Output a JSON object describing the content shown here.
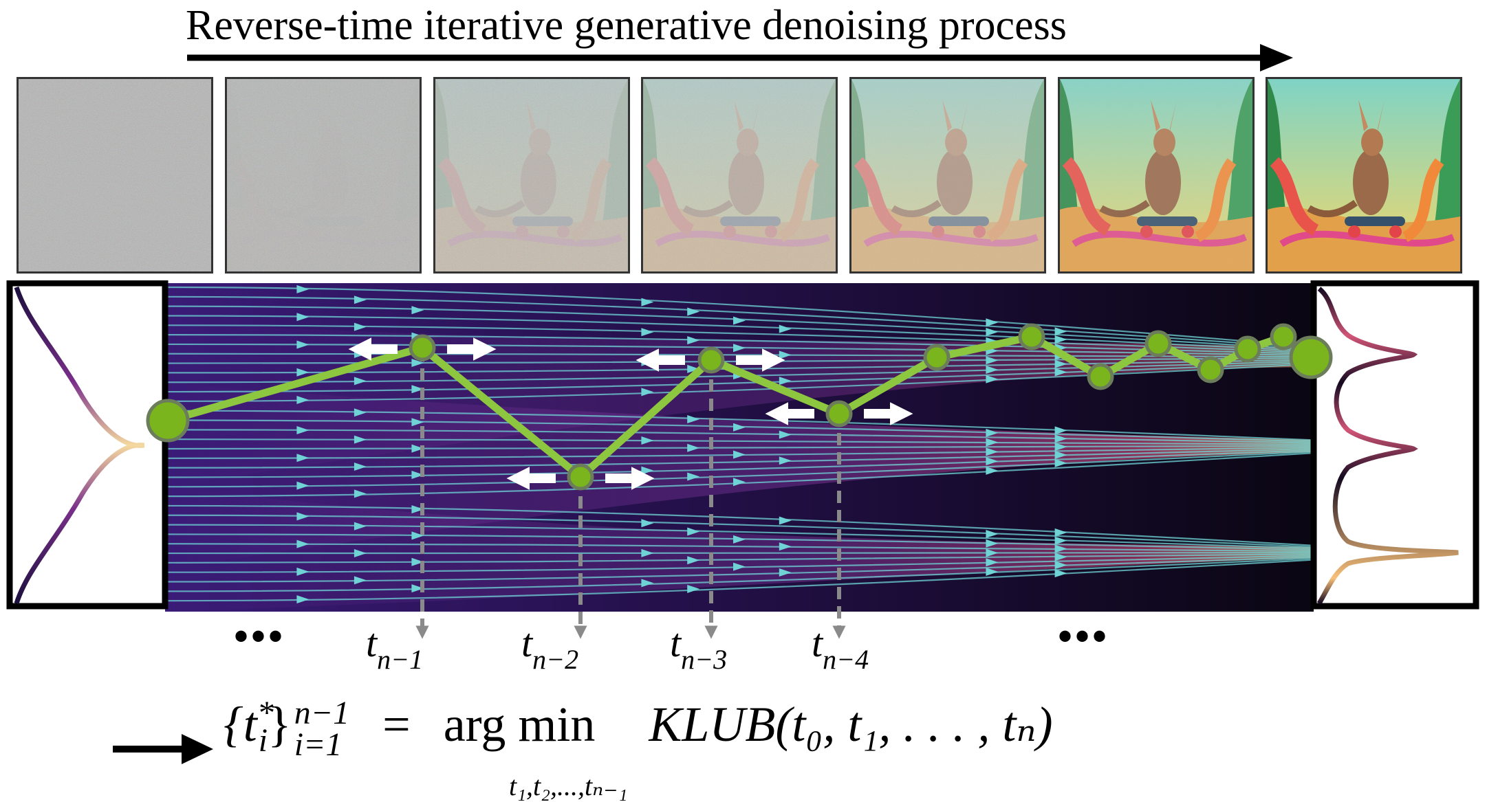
{
  "header": {
    "title": "Reverse-time iterative generative denoising process"
  },
  "frames": {
    "count": 7,
    "noise_levels": [
      1.0,
      0.95,
      0.7,
      0.55,
      0.35,
      0.08,
      0.0
    ]
  },
  "timesteps": {
    "ellipsis_left": "•••",
    "ellipsis_right": "•••",
    "labels": [
      {
        "base": "t",
        "sub": "n−1"
      },
      {
        "base": "t",
        "sub": "n−2"
      },
      {
        "base": "t",
        "sub": "n−3"
      },
      {
        "base": "t",
        "sub": "n−4"
      }
    ]
  },
  "formula": {
    "lhs": "{t",
    "lhs_sup": "*",
    "lhs_sub": "i",
    "brace_close": "}",
    "range_sup": "n−1",
    "range_sub": "i=1",
    "equals": "=",
    "operator": "arg min",
    "operator_sub": "t₁,t₂,...,tₙ₋₁",
    "objective": "KLUB(t₀, t₁, . . . , tₙ)"
  },
  "colors": {
    "path": "#8dc63f",
    "node_fill": "#7ab51d",
    "node_stroke": "#6b7d5a",
    "streamline": "#6fd3d6",
    "background_dark": "#0a0612",
    "density_hot": "#f7c97a",
    "density_mid": "#c93f6e",
    "density_cool": "#3a1a6b"
  }
}
